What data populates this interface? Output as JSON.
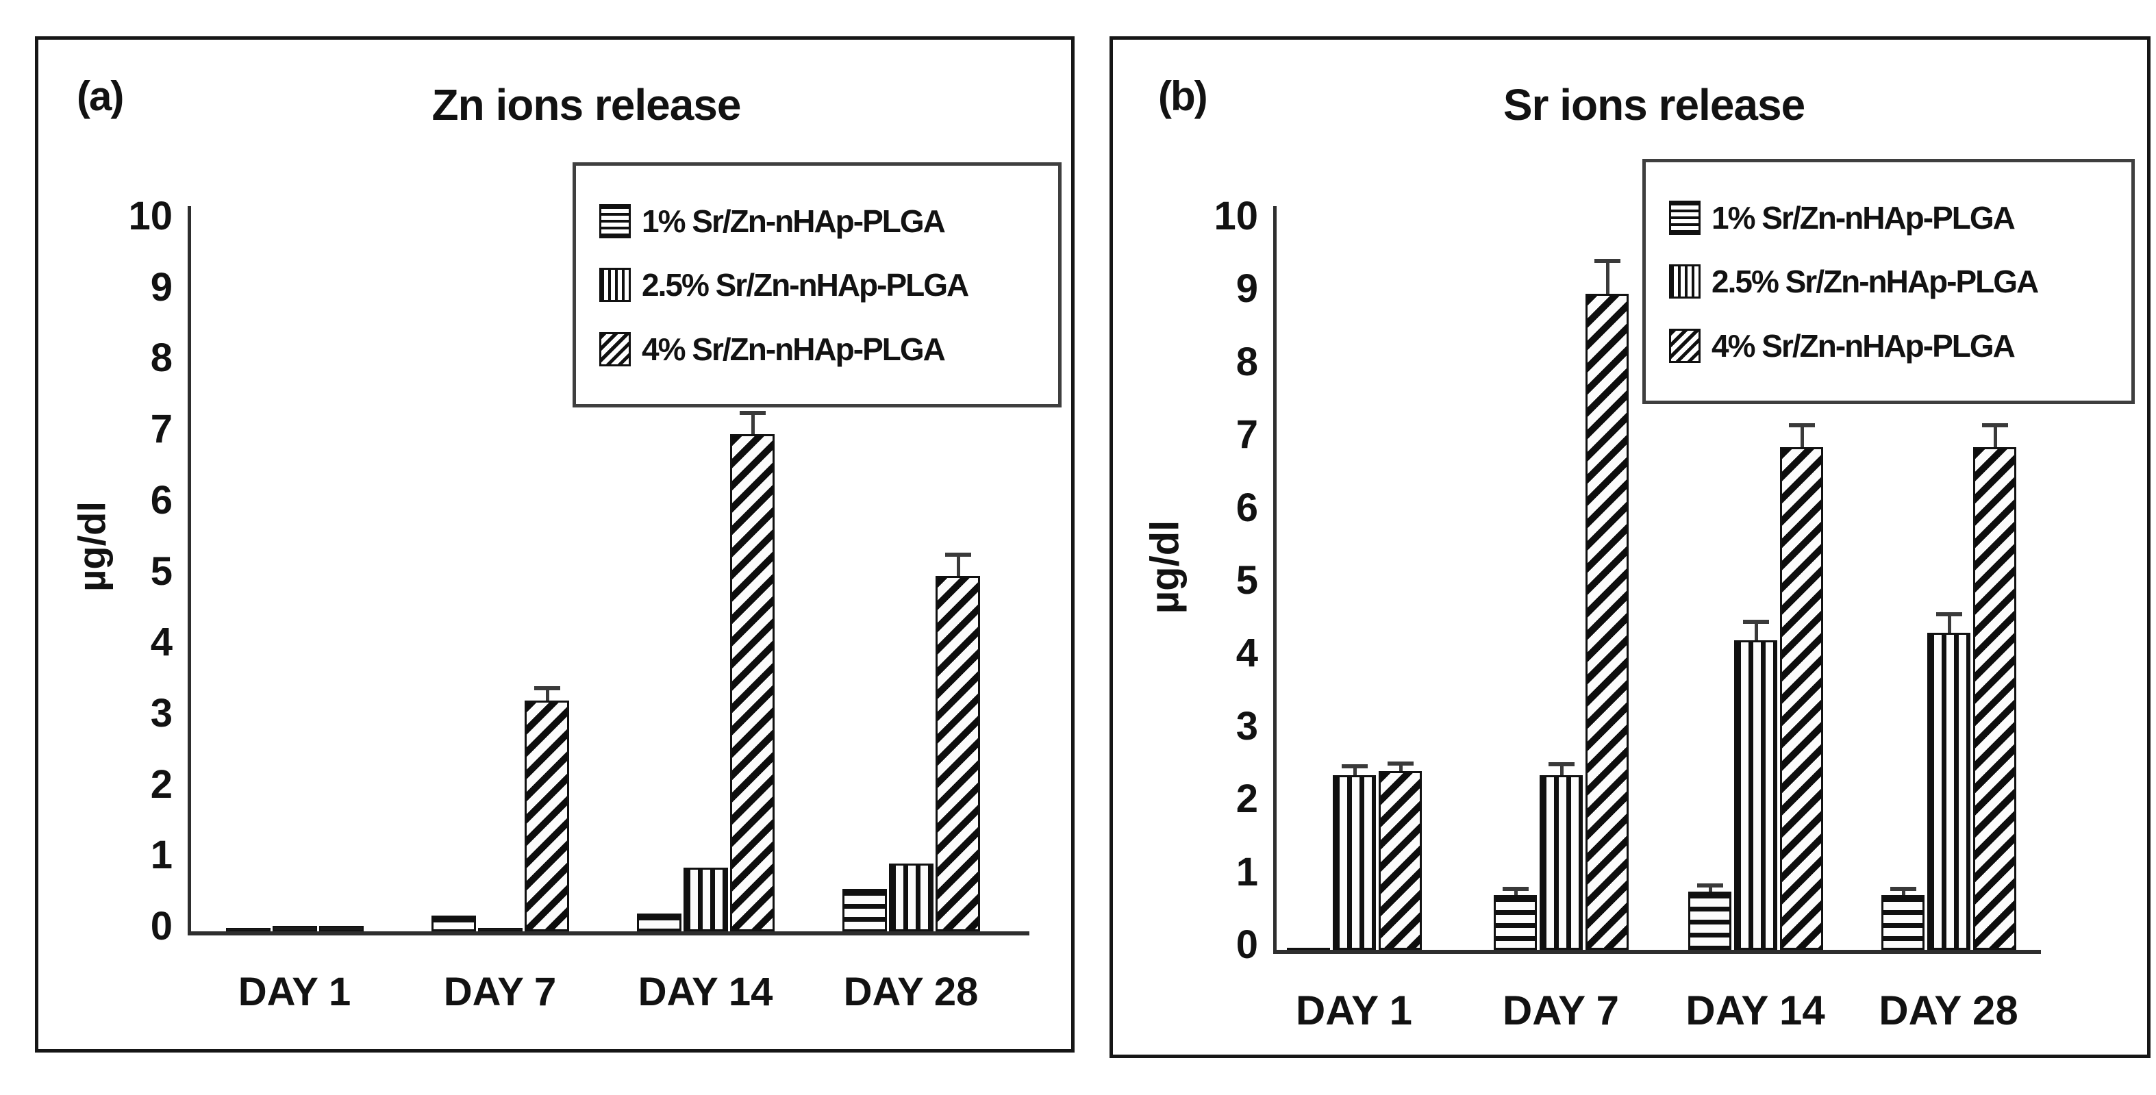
{
  "colors": {
    "stripe": "#111111",
    "background": "#ffffff",
    "text": "#121212",
    "axis": "#2e2e2e"
  },
  "chart_data": [
    {
      "type": "bar",
      "panel_label": "(a)",
      "title": "Zn ions release",
      "xlabel": "",
      "ylabel": "µg/dl",
      "categories": [
        "DAY 1",
        "DAY 7",
        "DAY 14",
        "DAY 28"
      ],
      "ylim": [
        0,
        10
      ],
      "yticks": [
        0,
        1,
        2,
        3,
        4,
        5,
        6,
        7,
        8,
        9,
        10
      ],
      "grid": false,
      "legend_position": "top-right",
      "series": [
        {
          "name": "1% Sr/Zn-nHAp-PLGA",
          "pattern": "horizontal-stripes",
          "values": [
            0.05,
            0.22,
            0.25,
            0.6
          ],
          "errors": [
            0,
            0,
            0,
            0
          ]
        },
        {
          "name": "2.5% Sr/Zn-nHAp-PLGA",
          "pattern": "vertical-stripes",
          "values": [
            0.08,
            0.05,
            0.9,
            0.95
          ],
          "errors": [
            0,
            0,
            0,
            0
          ]
        },
        {
          "name": "4% Sr/Zn-nHAp-PLGA",
          "pattern": "diagonal-stripes",
          "values": [
            0.08,
            3.25,
            7.0,
            5.0
          ],
          "errors": [
            0,
            0.17,
            0.3,
            0.3
          ]
        }
      ]
    },
    {
      "type": "bar",
      "panel_label": "(b)",
      "title": "Sr ions release",
      "xlabel": "",
      "ylabel": "µg/dl",
      "categories": [
        "DAY 1",
        "DAY 7",
        "DAY 14",
        "DAY 28"
      ],
      "ylim": [
        0,
        10
      ],
      "yticks": [
        0,
        1,
        2,
        3,
        4,
        5,
        6,
        7,
        8,
        9,
        10
      ],
      "grid": false,
      "legend_position": "top-right",
      "series": [
        {
          "name": "1% Sr/Zn-nHAp-PLGA",
          "pattern": "horizontal-stripes",
          "values": [
            0.03,
            0.75,
            0.8,
            0.75
          ],
          "errors": [
            0,
            0.08,
            0.08,
            0.08
          ]
        },
        {
          "name": "2.5% Sr/Zn-nHAp-PLGA",
          "pattern": "vertical-stripes",
          "values": [
            2.4,
            2.4,
            4.25,
            4.35
          ],
          "errors": [
            0.12,
            0.15,
            0.25,
            0.25
          ]
        },
        {
          "name": "4% Sr/Zn-nHAp-PLGA",
          "pattern": "diagonal-stripes",
          "values": [
            2.45,
            9.0,
            6.9,
            6.9
          ],
          "errors": [
            0.1,
            0.45,
            0.3,
            0.3
          ]
        }
      ]
    }
  ]
}
